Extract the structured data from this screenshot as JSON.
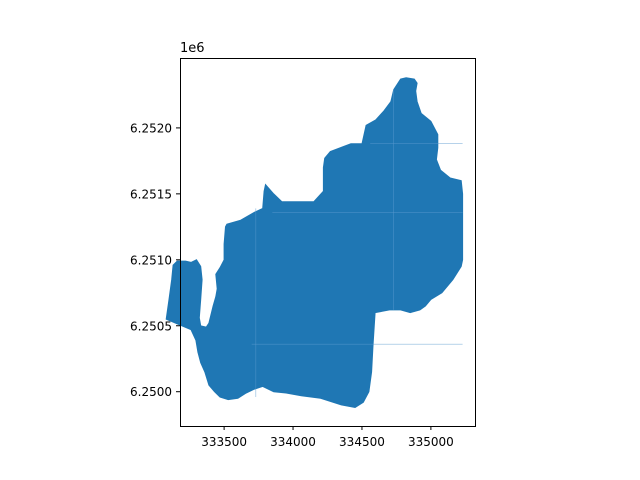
{
  "chart_data": {
    "type": "map",
    "title": "",
    "xlabel": "",
    "ylabel": "",
    "y_offset_label": "1e6",
    "xlim": [
      333180,
      335320
    ],
    "ylim": [
      6249740,
      6252530
    ],
    "x_ticks": [
      333500,
      334000,
      334500,
      335000
    ],
    "x_tick_labels": [
      "333500",
      "334000",
      "334500",
      "335000"
    ],
    "y_ticks": [
      6250000,
      6250500,
      6251000,
      6251500,
      6252000
    ],
    "y_tick_labels": [
      "6.2500",
      "6.2505",
      "6.2510",
      "6.2515",
      "6.2520"
    ],
    "grid": false,
    "fill_color": "#1f77b4",
    "outline": [
      [
        333260,
        6250470
      ],
      [
        333295,
        6250390
      ],
      [
        333310,
        6250300
      ],
      [
        333330,
        6250220
      ],
      [
        333360,
        6250150
      ],
      [
        333390,
        6250050
      ],
      [
        333430,
        6250000
      ],
      [
        333470,
        6249960
      ],
      [
        333530,
        6249940
      ],
      [
        333600,
        6249950
      ],
      [
        333660,
        6249990
      ],
      [
        333720,
        6250020
      ],
      [
        333780,
        6250040
      ],
      [
        333860,
        6250000
      ],
      [
        333950,
        6249990
      ],
      [
        334060,
        6249970
      ],
      [
        334200,
        6249950
      ],
      [
        334350,
        6249900
      ],
      [
        334450,
        6249880
      ],
      [
        334510,
        6249920
      ],
      [
        334550,
        6250000
      ],
      [
        334570,
        6250150
      ],
      [
        334580,
        6250350
      ],
      [
        334595,
        6250600
      ],
      [
        334700,
        6250620
      ],
      [
        334780,
        6250620
      ],
      [
        334850,
        6250600
      ],
      [
        334920,
        6250620
      ],
      [
        334960,
        6250650
      ],
      [
        335000,
        6250700
      ],
      [
        335080,
        6250750
      ],
      [
        335160,
        6250850
      ],
      [
        335220,
        6250950
      ],
      [
        335230,
        6251000
      ],
      [
        335230,
        6251500
      ],
      [
        335220,
        6251600
      ],
      [
        335140,
        6251620
      ],
      [
        335070,
        6251680
      ],
      [
        335040,
        6251760
      ],
      [
        335050,
        6251850
      ],
      [
        335050,
        6251950
      ],
      [
        335000,
        6252050
      ],
      [
        334930,
        6252110
      ],
      [
        334900,
        6252200
      ],
      [
        334890,
        6252280
      ],
      [
        334900,
        6252340
      ],
      [
        334880,
        6252370
      ],
      [
        334820,
        6252380
      ],
      [
        334780,
        6252370
      ],
      [
        334730,
        6252290
      ],
      [
        334710,
        6252200
      ],
      [
        334660,
        6252130
      ],
      [
        334600,
        6252060
      ],
      [
        334530,
        6252020
      ],
      [
        334500,
        6251880
      ],
      [
        334420,
        6251880
      ],
      [
        334370,
        6251860
      ],
      [
        334270,
        6251820
      ],
      [
        334230,
        6251770
      ],
      [
        334220,
        6251700
      ],
      [
        334220,
        6251520
      ],
      [
        334150,
        6251440
      ],
      [
        333920,
        6251440
      ],
      [
        333860,
        6251500
      ],
      [
        333800,
        6251570
      ],
      [
        333790,
        6251520
      ],
      [
        333780,
        6251390
      ],
      [
        333720,
        6251360
      ],
      [
        333620,
        6251300
      ],
      [
        333520,
        6251270
      ],
      [
        333510,
        6251250
      ],
      [
        333500,
        6251120
      ],
      [
        333500,
        6251000
      ],
      [
        333470,
        6250940
      ],
      [
        333440,
        6250890
      ],
      [
        333450,
        6250780
      ],
      [
        333440,
        6250720
      ],
      [
        333420,
        6250650
      ],
      [
        333390,
        6250520
      ],
      [
        333370,
        6250490
      ],
      [
        333330,
        6250500
      ],
      [
        333320,
        6250560
      ],
      [
        333330,
        6250700
      ],
      [
        333340,
        6250850
      ],
      [
        333330,
        6250950
      ],
      [
        333300,
        6251000
      ],
      [
        333260,
        6250980
      ],
      [
        333220,
        6250990
      ],
      [
        333160,
        6250990
      ],
      [
        333130,
        6250960
      ],
      [
        333120,
        6250850
      ],
      [
        333100,
        6250700
      ],
      [
        333080,
        6250550
      ],
      [
        333260,
        6250470
      ]
    ],
    "interior_lines": [
      [
        [
          333700,
          6250360
        ],
        [
          335230,
          6250360
        ]
      ],
      [
        [
          333850,
          6251360
        ],
        [
          335230,
          6251360
        ]
      ],
      [
        [
          334560,
          6251880
        ],
        [
          335230,
          6251880
        ]
      ],
      [
        [
          333730,
          6249960
        ],
        [
          333730,
          6251390
        ]
      ],
      [
        [
          334730,
          6250620
        ],
        [
          334730,
          6252290
        ]
      ]
    ]
  }
}
